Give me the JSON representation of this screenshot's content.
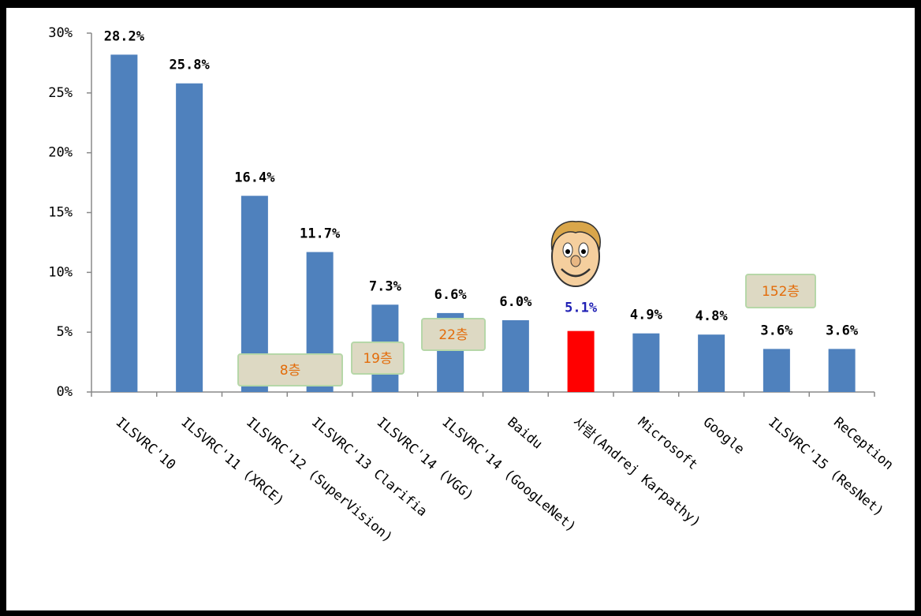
{
  "chart_data": {
    "type": "bar",
    "categories": [
      "ILSVRC'10",
      "ILSVRC'11 (XRCE)",
      "ILSVRC'12 (SuperVision)",
      "ILSVRC'13 Clarifia",
      "ILSVRC'14 (VGG)",
      "ILSVRC'14 (GoogLeNet)",
      "Baidu",
      "사람(Andrej Karpathy)",
      "Microsoft",
      "Google",
      "ILSVRC'15 (ResNet)",
      "ReCeption"
    ],
    "values": [
      28.2,
      25.8,
      16.4,
      11.7,
      7.3,
      6.6,
      6.0,
      5.1,
      4.9,
      4.8,
      3.6,
      3.6
    ],
    "value_labels": [
      "28.2%",
      "25.8%",
      "16.4%",
      "11.7%",
      "7.3%",
      "6.6%",
      "6.0%",
      "5.1%",
      "4.9%",
      "4.8%",
      "3.6%",
      "3.6%"
    ],
    "colors": [
      "#4f81bd",
      "#4f81bd",
      "#4f81bd",
      "#4f81bd",
      "#4f81bd",
      "#4f81bd",
      "#4f81bd",
      "#ff0000",
      "#4f81bd",
      "#4f81bd",
      "#4f81bd",
      "#4f81bd"
    ],
    "value_label_colors": [
      "#000000",
      "#000000",
      "#000000",
      "#000000",
      "#000000",
      "#000000",
      "#000000",
      "#1f1fb4",
      "#000000",
      "#000000",
      "#000000",
      "#000000"
    ],
    "ylim": [
      0,
      30
    ],
    "yticks": [
      {
        "value": 0,
        "label": "0%"
      },
      {
        "value": 5,
        "label": "5%"
      },
      {
        "value": 10,
        "label": "10%"
      },
      {
        "value": 15,
        "label": "15%"
      },
      {
        "value": 20,
        "label": "20%"
      },
      {
        "value": 25,
        "label": "25%"
      },
      {
        "value": 30,
        "label": "30%"
      }
    ],
    "grid": false,
    "annotations": [
      "8층",
      "19층",
      "22층",
      "152층"
    ]
  }
}
